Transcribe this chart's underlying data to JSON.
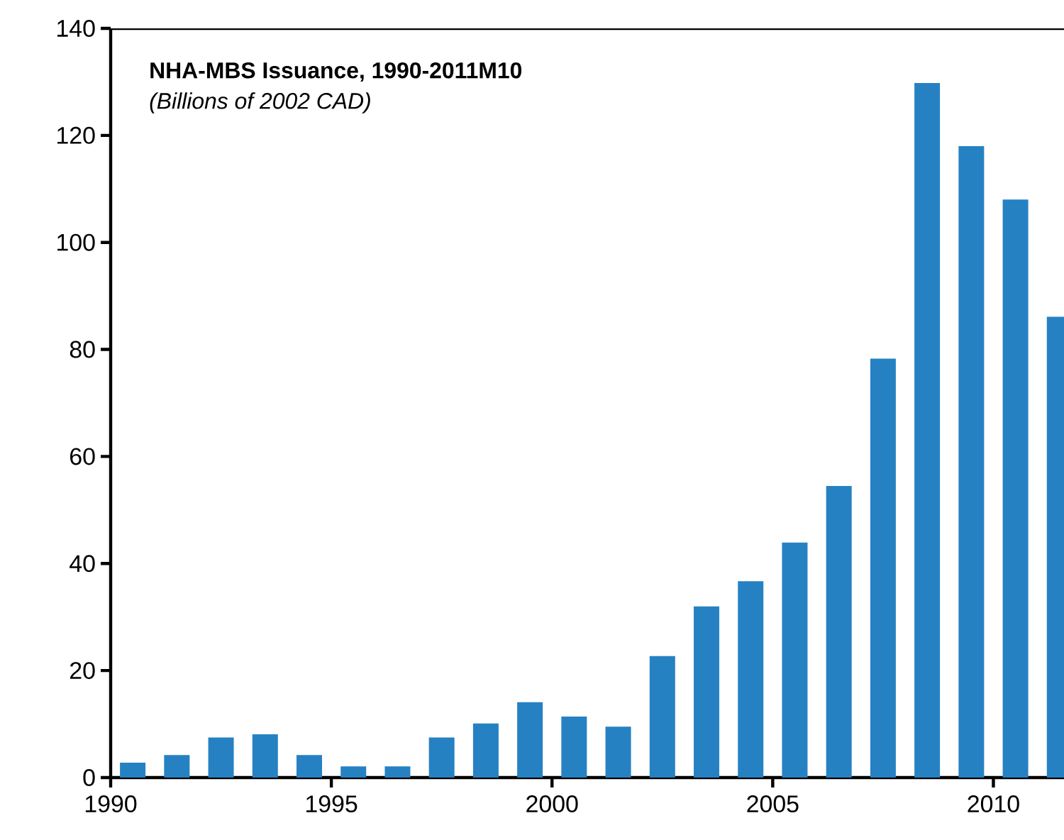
{
  "chart_data": {
    "type": "bar",
    "title": "NHA-MBS Issuance, 1990-2011M10",
    "subtitle": "(Billions of 2002 CAD)",
    "x": [
      1990.5,
      1991.5,
      1992.5,
      1993.5,
      1994.5,
      1995.5,
      1996.5,
      1997.5,
      1998.5,
      1999.5,
      2000.5,
      2001.5,
      2002.5,
      2003.5,
      2004.5,
      2005.5,
      2006.5,
      2007.5,
      2008.5,
      2009.5,
      2010.5,
      2011.5
    ],
    "values": [
      2.8,
      4.2,
      7.5,
      8.1,
      4.2,
      2.1,
      2.1,
      7.5,
      10.1,
      14.1,
      11.4,
      9.5,
      22.7,
      32.0,
      36.7,
      43.9,
      54.5,
      78.3,
      129.8,
      118.0,
      108.0,
      86.1
    ],
    "color": "#2681c3",
    "xlim": [
      1990,
      2011.6
    ],
    "ylim": [
      0,
      140
    ],
    "xticks": [
      1990,
      1995,
      2000,
      2005,
      2010
    ],
    "yticks": [
      0,
      20,
      40,
      60,
      80,
      100,
      120,
      140
    ]
  }
}
